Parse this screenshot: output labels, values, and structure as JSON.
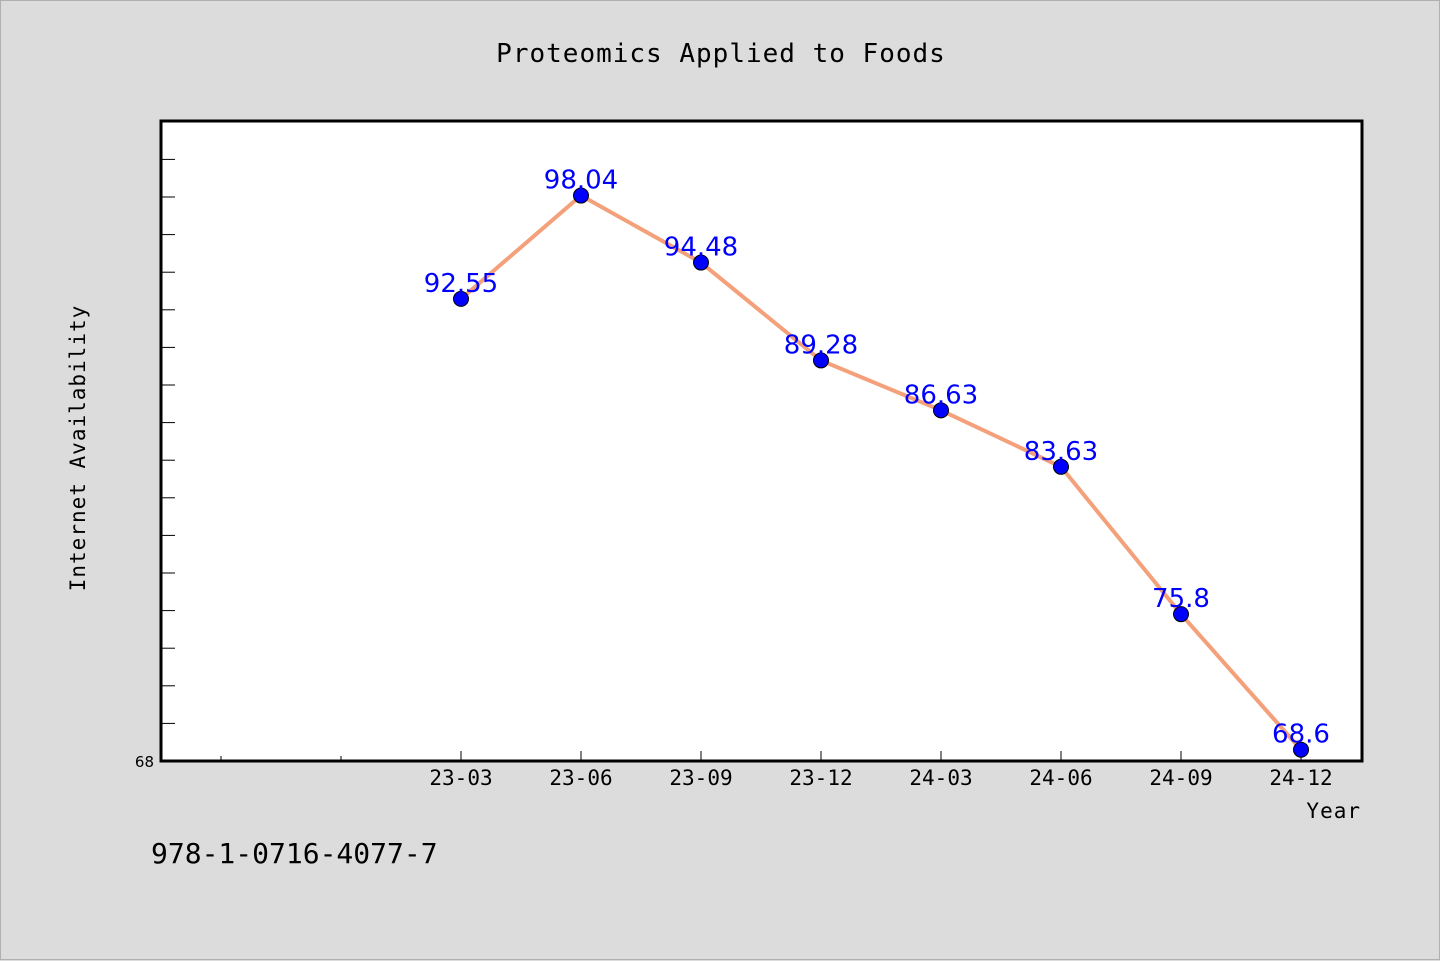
{
  "chart_data": {
    "type": "line",
    "title": "Proteomics Applied to Foods",
    "xlabel": "Year",
    "ylabel": "Internet Availability",
    "categories": [
      "23-03",
      "23-06",
      "23-09",
      "23-12",
      "24-03",
      "24-06",
      "24-09",
      "24-12"
    ],
    "series": [
      {
        "values": [
          92.55,
          98.04,
          94.48,
          89.28,
          86.63,
          83.63,
          75.8,
          68.6
        ],
        "data_labels": [
          "92.55",
          "98.04",
          "94.48",
          "89.28",
          "86.63",
          "83.63",
          "75.8",
          "68.6"
        ]
      }
    ],
    "ylim": [
      68,
      102
    ],
    "y_tick_label": "68",
    "grid": false,
    "legend": "none",
    "colors": {
      "line": "#f4a07a",
      "marker": "#0000ff",
      "data_label": "#0000ff",
      "background": "#dcdcdc",
      "plot_area": "#ffffff"
    }
  },
  "footer": {
    "isbn": "978-1-0716-4077-7"
  }
}
